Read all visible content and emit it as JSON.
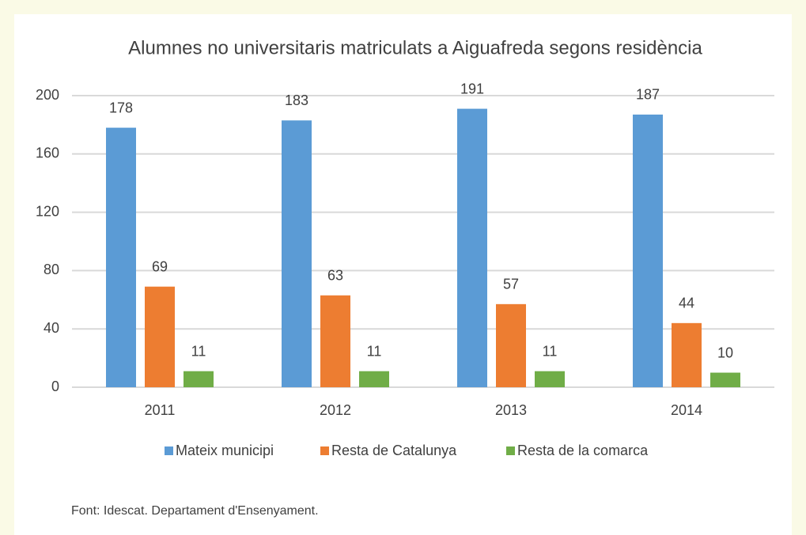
{
  "chart_data": {
    "type": "bar",
    "title": "Alumnes  no universitaris matriculats a Aiguafreda segons residència",
    "categories": [
      "2011",
      "2012",
      "2013",
      "2014"
    ],
    "series": [
      {
        "name": "Mateix municipi",
        "color": "#5b9bd5",
        "values": [
          178,
          183,
          191,
          187
        ]
      },
      {
        "name": "Resta de Catalunya",
        "color": "#ed7d31",
        "values": [
          69,
          63,
          57,
          44
        ]
      },
      {
        "name": "Resta de la comarca",
        "color": "#70ad47",
        "values": [
          11,
          11,
          11,
          10
        ]
      }
    ],
    "ylim": [
      0,
      200
    ],
    "yticks": [
      0,
      40,
      80,
      120,
      160,
      200
    ],
    "grid": true,
    "legend": "bottom",
    "note": "Font:  Idescat. Departament  d'Ensenyament."
  }
}
